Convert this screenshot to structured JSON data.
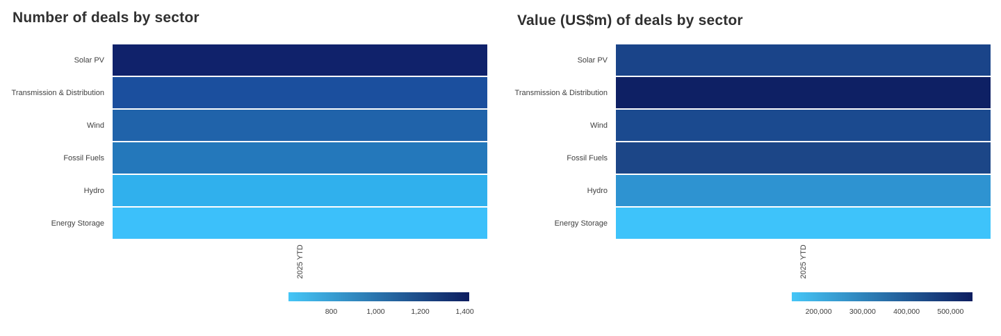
{
  "page": {
    "background_color": "#ffffff"
  },
  "chart_data": [
    {
      "type": "heatmap",
      "title": "Number of deals by sector",
      "rows": [
        "Solar PV",
        "Transmission & Distribution",
        "Wind",
        "Fossil Fuels",
        "Hydro",
        "Energy Storage"
      ],
      "columns": [
        "2025 YTD"
      ],
      "values": [
        [
          1400
        ],
        [
          1180
        ],
        [
          1080
        ],
        [
          980
        ],
        [
          715
        ],
        [
          640
        ]
      ],
      "values_estimated_from_colorscale": true,
      "cell_colors": [
        "#10226B",
        "#1B4F9E",
        "#2063AA",
        "#2478BB",
        "#30B0ED",
        "#3CC0FA"
      ],
      "colorscale": {
        "min_color": "#45C6F7",
        "max_color": "#0D1D5F",
        "domain": [
          608,
          1420
        ],
        "tick_values": [
          800,
          1000,
          1200,
          1400
        ],
        "ticks": [
          "800",
          "1,000",
          "1,200",
          "1,400"
        ],
        "legend_position": "bottom"
      },
      "grid": false
    },
    {
      "type": "heatmap",
      "title": "Value (US$m) of deals by sector",
      "rows": [
        "Solar PV",
        "Transmission & Distribution",
        "Wind",
        "Fossil Fuels",
        "Hydro",
        "Energy Storage"
      ],
      "columns": [
        "2025 YTD"
      ],
      "values": [
        [
          455000
        ],
        [
          543000
        ],
        [
          452000
        ],
        [
          448000
        ],
        [
          263000
        ],
        [
          148000
        ]
      ],
      "values_estimated_from_colorscale": true,
      "cell_colors": [
        "#1A4489",
        "#0E2064",
        "#1B4A8F",
        "#1C4687",
        "#2E93D1",
        "#3EC3FA"
      ],
      "colorscale": {
        "min_color": "#45C6F7",
        "max_color": "#0D1D5F",
        "domain": [
          139000,
          550000
        ],
        "tick_values": [
          200000,
          300000,
          400000,
          500000
        ],
        "ticks": [
          "200,000",
          "300,000",
          "400,000",
          "500,000"
        ],
        "legend_position": "bottom"
      },
      "grid": false
    }
  ]
}
